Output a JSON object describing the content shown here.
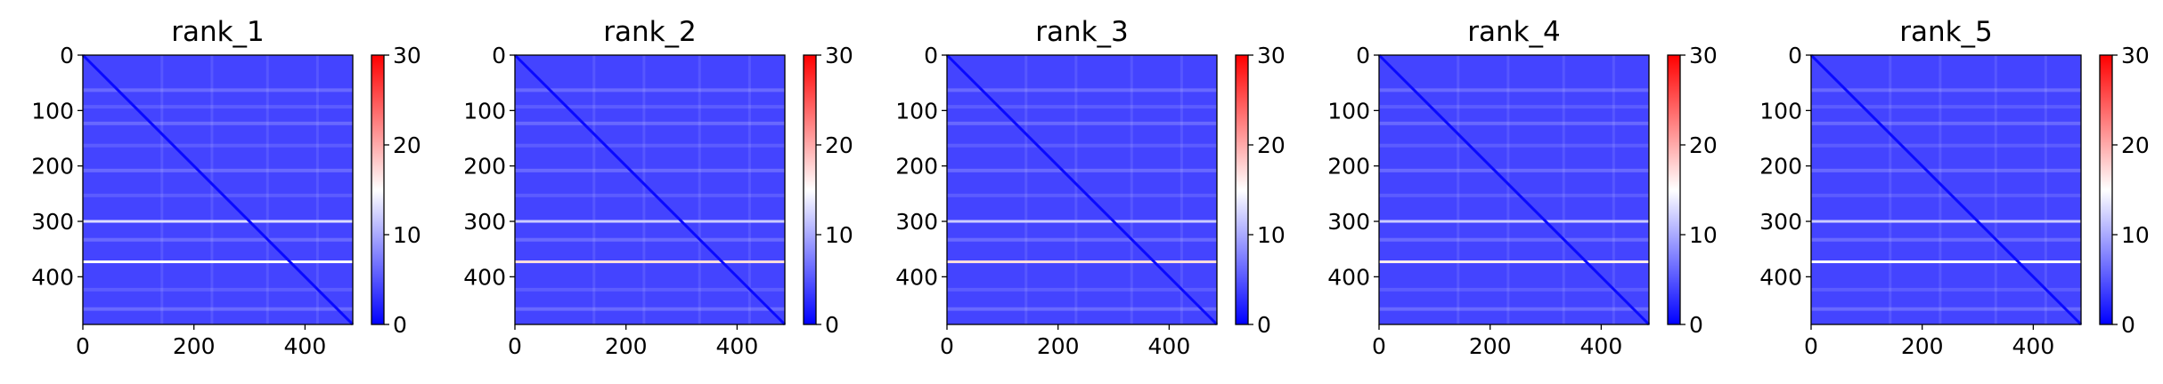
{
  "chart_data": [
    {
      "type": "heatmap",
      "title": "rank_1",
      "x_ticks": [
        "0",
        "200",
        "400"
      ],
      "y_ticks": [
        "0",
        "100",
        "200",
        "300",
        "400"
      ],
      "matrix_size": 486,
      "xlim": [
        0,
        486
      ],
      "ylim": [
        486,
        0
      ],
      "colorbar": {
        "ticks": [
          "0",
          "10",
          "20",
          "30"
        ],
        "min": 0,
        "max": 30
      },
      "colormap": [
        "#0000ff",
        "#ffffff",
        "#ff0000"
      ],
      "baseline_value": 4,
      "feature_rows": [
        {
          "row": 300,
          "value": 13
        },
        {
          "row": 373,
          "value": 15
        }
      ],
      "diagonal_value": 0.5
    },
    {
      "type": "heatmap",
      "title": "rank_2",
      "x_ticks": [
        "0",
        "200",
        "400"
      ],
      "y_ticks": [
        "0",
        "100",
        "200",
        "300",
        "400"
      ],
      "matrix_size": 486,
      "xlim": [
        0,
        486
      ],
      "ylim": [
        486,
        0
      ],
      "colorbar": {
        "ticks": [
          "0",
          "10",
          "20",
          "30"
        ],
        "min": 0,
        "max": 30
      },
      "colormap": [
        "#0000ff",
        "#ffffff",
        "#ff0000"
      ],
      "baseline_value": 4,
      "feature_rows": [
        {
          "row": 300,
          "value": 12
        },
        {
          "row": 373,
          "value": 17
        }
      ],
      "diagonal_value": 0.5
    },
    {
      "type": "heatmap",
      "title": "rank_3",
      "x_ticks": [
        "0",
        "200",
        "400"
      ],
      "y_ticks": [
        "0",
        "100",
        "200",
        "300",
        "400"
      ],
      "matrix_size": 486,
      "xlim": [
        0,
        486
      ],
      "ylim": [
        486,
        0
      ],
      "colorbar": {
        "ticks": [
          "0",
          "10",
          "20",
          "30"
        ],
        "min": 0,
        "max": 30
      },
      "colormap": [
        "#0000ff",
        "#ffffff",
        "#ff0000"
      ],
      "baseline_value": 4,
      "feature_rows": [
        {
          "row": 300,
          "value": 12
        },
        {
          "row": 373,
          "value": 17
        }
      ],
      "diagonal_value": 0.5
    },
    {
      "type": "heatmap",
      "title": "rank_4",
      "x_ticks": [
        "0",
        "200",
        "400"
      ],
      "y_ticks": [
        "0",
        "100",
        "200",
        "300",
        "400"
      ],
      "matrix_size": 486,
      "xlim": [
        0,
        486
      ],
      "ylim": [
        486,
        0
      ],
      "colorbar": {
        "ticks": [
          "0",
          "10",
          "20",
          "30"
        ],
        "min": 0,
        "max": 30
      },
      "colormap": [
        "#0000ff",
        "#ffffff",
        "#ff0000"
      ],
      "baseline_value": 4,
      "feature_rows": [
        {
          "row": 300,
          "value": 12
        },
        {
          "row": 373,
          "value": 16
        }
      ],
      "diagonal_value": 0.5
    },
    {
      "type": "heatmap",
      "title": "rank_5",
      "x_ticks": [
        "0",
        "200",
        "400"
      ],
      "y_ticks": [
        "0",
        "100",
        "200",
        "300",
        "400"
      ],
      "matrix_size": 486,
      "xlim": [
        0,
        486
      ],
      "ylim": [
        486,
        0
      ],
      "colorbar": {
        "ticks": [
          "0",
          "10",
          "20",
          "30"
        ],
        "min": 0,
        "max": 30
      },
      "colormap": [
        "#0000ff",
        "#ffffff",
        "#ff0000"
      ],
      "baseline_value": 4,
      "feature_rows": [
        {
          "row": 300,
          "value": 12
        },
        {
          "row": 373,
          "value": 15
        }
      ],
      "diagonal_value": 0.5
    }
  ]
}
